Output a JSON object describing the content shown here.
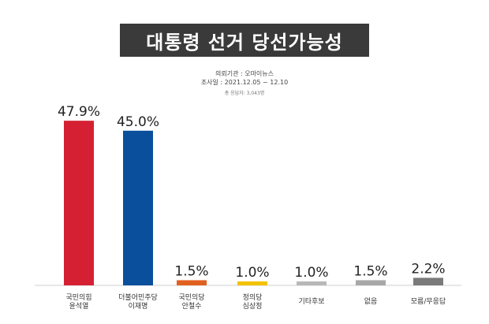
{
  "header": {
    "title": "대통령 선거 당선가능성",
    "agency": "의뢰기관 : 오마이뉴스",
    "period": "조사일 : 2021.12.05 ~ 12.10",
    "respondents": "총 응답자: 3,043명"
  },
  "chart_data": {
    "type": "bar",
    "title": "대통령 선거 당선가능성",
    "categories": [
      [
        "국민의힘",
        "윤석열"
      ],
      [
        "더불어민주당",
        "이재명"
      ],
      [
        "국민의당",
        "안철수"
      ],
      [
        "정의당",
        "심상정"
      ],
      [
        "기타후보"
      ],
      [
        "없음"
      ],
      [
        "모름/무응답"
      ]
    ],
    "values": [
      47.9,
      45.0,
      1.5,
      1.0,
      1.0,
      1.5,
      2.2
    ],
    "value_labels": [
      "47.9%",
      "45.0%",
      "1.5%",
      "1.0%",
      "1.0%",
      "1.5%",
      "2.2%"
    ],
    "colors": [
      "#d42032",
      "#0a4f9c",
      "#e0611f",
      "#f2c200",
      "#b8b8b8",
      "#a8a8a8",
      "#7a7a7a"
    ],
    "ylim": [
      0,
      50
    ],
    "grid": false,
    "legend": "none"
  }
}
